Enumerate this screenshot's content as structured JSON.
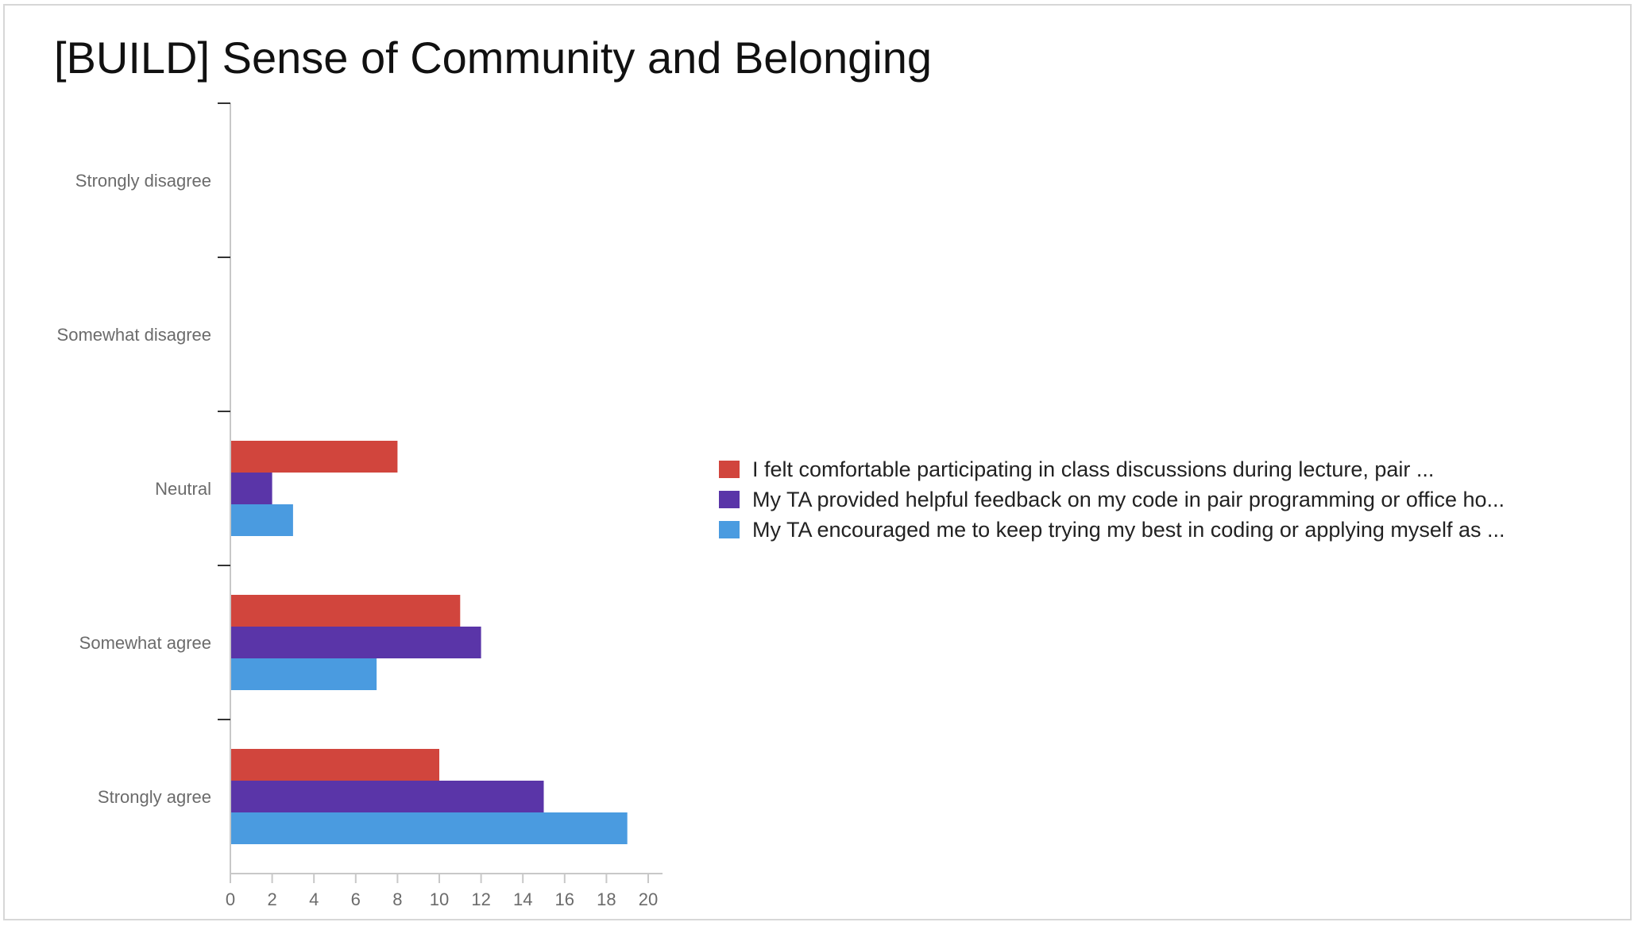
{
  "title": "[BUILD] Sense of Community and Belonging",
  "chart_data": {
    "type": "bar",
    "orientation": "horizontal",
    "categories": [
      "Strongly disagree",
      "Somewhat disagree",
      "Neutral",
      "Somewhat agree",
      "Strongly agree"
    ],
    "series": [
      {
        "name": "I felt comfortable participating in class discussions during lecture, pair ...",
        "color": "#d1453d",
        "values": [
          0,
          0,
          8,
          11,
          10
        ]
      },
      {
        "name": "My TA provided helpful feedback on my code in pair programming or office ho...",
        "color": "#5a35a8",
        "values": [
          0,
          0,
          2,
          12,
          15
        ]
      },
      {
        "name": "My TA encouraged me to keep trying my best in coding or applying myself as ...",
        "color": "#4a9be0",
        "values": [
          0,
          0,
          3,
          7,
          19
        ]
      }
    ],
    "xticks": [
      0,
      2,
      4,
      6,
      8,
      10,
      12,
      14,
      16,
      18,
      20
    ],
    "xlim": [
      0,
      20
    ],
    "grid": false,
    "legend_position": "right"
  }
}
